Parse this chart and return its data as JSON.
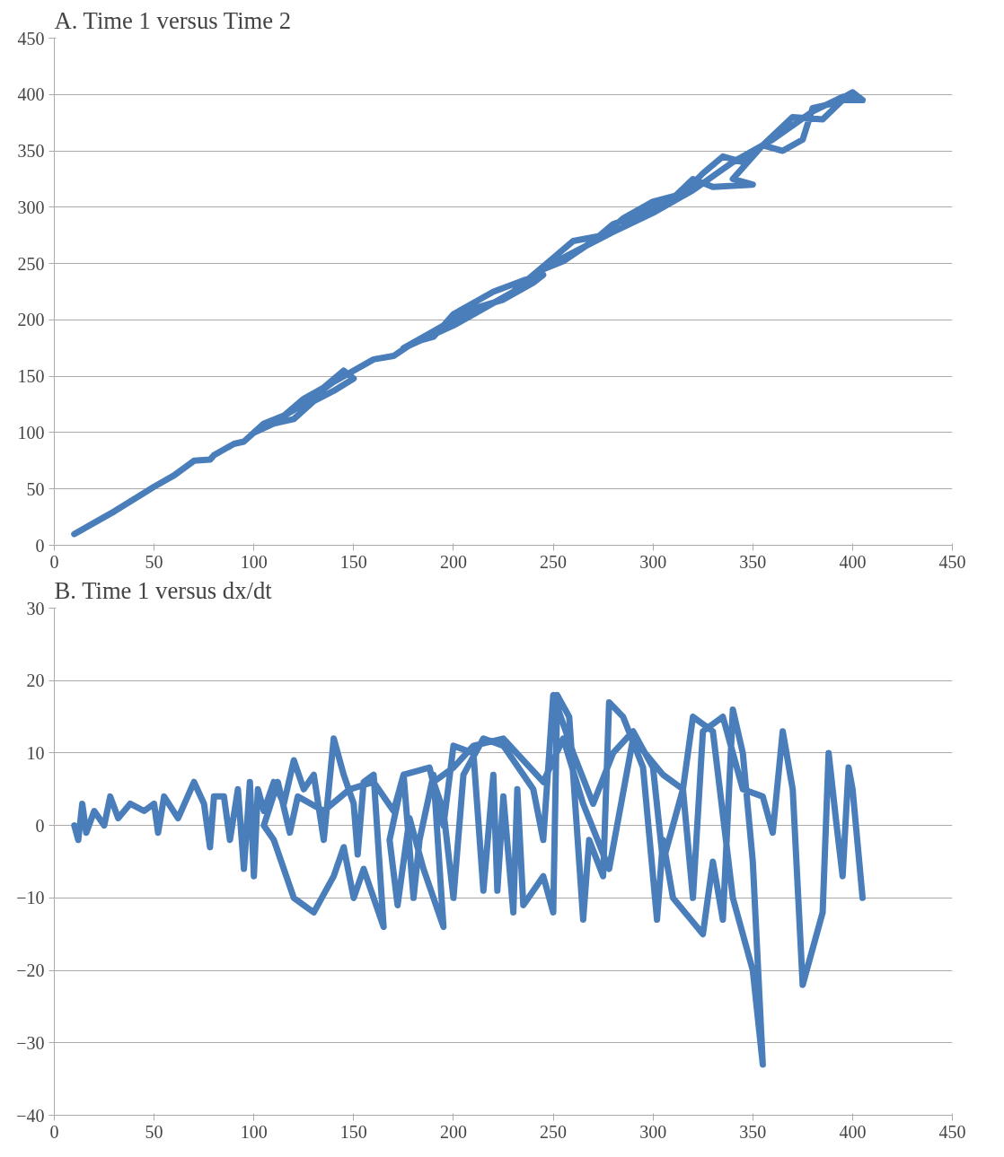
{
  "chart_data": [
    {
      "type": "line",
      "title": "A. Time 1 versus Time 2",
      "xlim": [
        0,
        450
      ],
      "ylim": [
        0,
        450
      ],
      "xticks": [
        0,
        50,
        100,
        150,
        200,
        250,
        300,
        350,
        400,
        450
      ],
      "yticks": [
        0,
        50,
        100,
        150,
        200,
        250,
        300,
        350,
        400,
        450
      ],
      "grid": "y",
      "line_style": "solid",
      "marker": "none",
      "series": [
        {
          "color": "#4a7ebb",
          "x": [
            10,
            20,
            30,
            50,
            60,
            70,
            78,
            80,
            90,
            95,
            100,
            105,
            115,
            125,
            135,
            145,
            150,
            140,
            130,
            120,
            110,
            100,
            120,
            140,
            160,
            170,
            180,
            190,
            200,
            210,
            220,
            235,
            245,
            240,
            225,
            210,
            200,
            190,
            175,
            185,
            200,
            215,
            230,
            250,
            260,
            275,
            285,
            300,
            315,
            325,
            335,
            345,
            355,
            370,
            385,
            395,
            405,
            400,
            390,
            380,
            375,
            365,
            355,
            340,
            350,
            330,
            320,
            310,
            295,
            280,
            270,
            255,
            245,
            258,
            280,
            300,
            320,
            340,
            360,
            380,
            395,
            405
          ],
          "values": [
            10,
            20,
            30,
            52,
            62,
            75,
            76,
            80,
            90,
            92,
            100,
            108,
            115,
            130,
            140,
            155,
            148,
            137,
            128,
            112,
            108,
            100,
            120,
            145,
            165,
            168,
            180,
            185,
            205,
            215,
            225,
            235,
            240,
            233,
            218,
            210,
            200,
            190,
            175,
            183,
            195,
            210,
            225,
            255,
            270,
            275,
            290,
            305,
            312,
            330,
            345,
            340,
            355,
            380,
            378,
            395,
            395,
            402,
            392,
            388,
            360,
            350,
            355,
            325,
            320,
            318,
            325,
            308,
            295,
            285,
            270,
            252,
            245,
            258,
            278,
            295,
            315,
            340,
            360,
            385,
            398,
            395
          ]
        }
      ]
    },
    {
      "type": "line",
      "title": "B. Time 1 versus dx/dt",
      "xlim": [
        0,
        450
      ],
      "ylim": [
        -40,
        30
      ],
      "xticks": [
        0,
        50,
        100,
        150,
        200,
        250,
        300,
        350,
        400,
        450
      ],
      "yticks": [
        -40,
        -30,
        -20,
        -10,
        0,
        10,
        20,
        30
      ],
      "grid": "y",
      "line_style": "solid",
      "marker": "none",
      "series": [
        {
          "color": "#4a7ebb",
          "x": [
            10,
            12,
            14,
            16,
            20,
            25,
            28,
            32,
            38,
            45,
            50,
            52,
            55,
            62,
            70,
            75,
            78,
            80,
            85,
            88,
            92,
            95,
            98,
            100,
            102,
            105,
            110,
            115,
            120,
            125,
            130,
            135,
            140,
            145,
            150,
            152,
            155,
            160,
            165,
            155,
            150,
            145,
            140,
            130,
            120,
            110,
            105,
            112,
            118,
            122,
            135,
            148,
            160,
            170,
            175,
            180,
            183,
            190,
            195,
            185,
            178,
            172,
            168,
            175,
            188,
            195,
            200,
            210,
            215,
            220,
            222,
            225,
            230,
            232,
            235,
            245,
            250,
            252,
            258,
            265,
            268,
            275,
            278,
            285,
            295,
            302,
            305,
            310,
            325,
            330,
            335,
            340,
            345,
            350,
            355,
            350,
            340,
            330,
            320,
            315,
            305,
            300,
            290,
            280,
            270,
            260,
            250,
            245,
            240,
            225,
            215,
            205,
            200,
            195,
            190,
            200,
            210,
            225,
            245,
            255,
            265,
            278,
            290,
            305,
            315,
            320,
            325,
            335,
            345,
            355,
            360,
            365,
            370,
            375,
            385,
            388,
            392,
            395,
            398,
            400,
            405
          ],
          "values": [
            0,
            -2,
            3,
            -1,
            2,
            0,
            4,
            1,
            3,
            2,
            3,
            -1,
            4,
            1,
            6,
            3,
            -3,
            4,
            4,
            -2,
            5,
            -6,
            6,
            -7,
            5,
            2,
            6,
            3,
            9,
            5,
            7,
            -2,
            12,
            7,
            3,
            -4,
            6,
            7,
            -14,
            -6,
            -10,
            -3,
            -7,
            -12,
            -10,
            -2,
            0,
            6,
            -1,
            4,
            2,
            5,
            6,
            2,
            7,
            -10,
            -2,
            7,
            -14,
            -6,
            1,
            -11,
            -2,
            7,
            8,
            0,
            11,
            10,
            -9,
            7,
            -9,
            4,
            -12,
            5,
            -11,
            -7,
            -12,
            18,
            15,
            -13,
            -2,
            -7,
            17,
            15,
            8,
            -13,
            -2,
            -10,
            -15,
            -5,
            -13,
            16,
            10,
            -5,
            -33,
            -20,
            -10,
            13,
            15,
            5,
            -5,
            8,
            13,
            10,
            3,
            10,
            18,
            -2,
            5,
            11,
            12,
            7,
            -10,
            2,
            6,
            8,
            11,
            12,
            6,
            12,
            3,
            -6,
            12,
            7,
            5,
            -10,
            13,
            15,
            5,
            4,
            -1,
            13,
            5,
            -22,
            -12,
            10,
            0,
            -7,
            8,
            5,
            -10
          ]
        }
      ]
    }
  ]
}
